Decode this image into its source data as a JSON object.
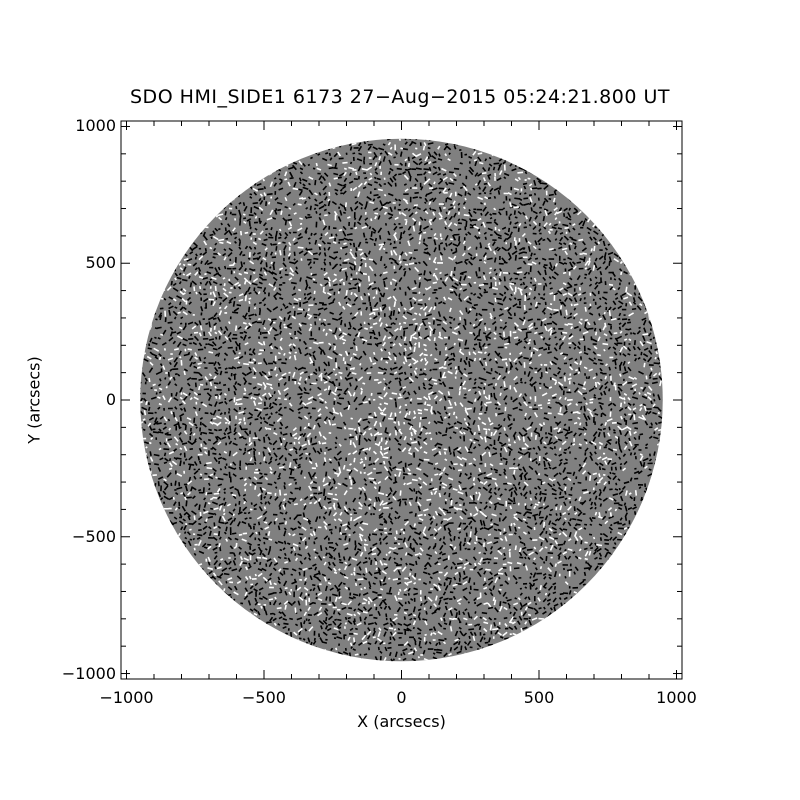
{
  "title": "SDO HMI_SIDE1 6173 27−Aug−2015 05:24:21.800 UT",
  "x_axis": {
    "label": "X (arcsecs)",
    "range": [
      -1020,
      1020
    ],
    "ticks": [
      -1000,
      -500,
      0,
      500,
      1000
    ],
    "tick_labels": [
      "−1000",
      "−500",
      "0",
      "500",
      "1000"
    ]
  },
  "y_axis": {
    "label": "Y (arcsecs)",
    "range": [
      -1020,
      1020
    ],
    "ticks": [
      -1000,
      -500,
      0,
      500,
      1000
    ],
    "tick_labels": [
      "−1000",
      "−500",
      "0",
      "500",
      "1000"
    ]
  },
  "image": {
    "content": "solar disk vector field map",
    "disk_radius_arcsec": 950,
    "disk_color": "#808080",
    "vector_colors": [
      "#000000",
      "#ffffff"
    ]
  }
}
